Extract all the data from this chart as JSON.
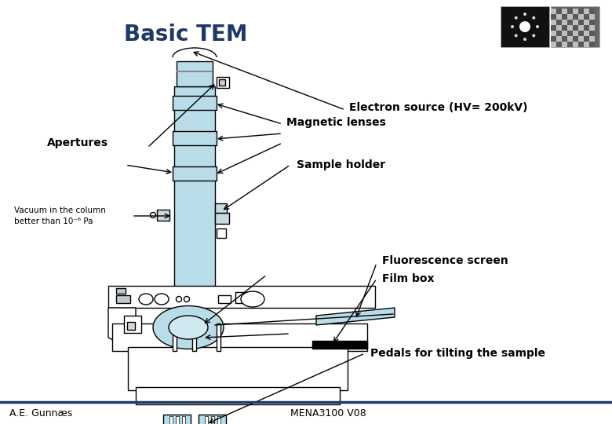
{
  "title": "Basic TEM",
  "title_color": "#1F3864",
  "title_fontsize": 20,
  "bg_color": "#FFFFFF",
  "tem_color": "#B8DDE8",
  "tem_edge_color": "#000000",
  "footer_line_color": "#1F3864",
  "footer_left": "A.E. Gunnæs",
  "footer_right": "MENA3100 V08",
  "footer_fontsize": 9,
  "labels": {
    "electron_source": "Electron source (HV= 200kV)",
    "apertures": "Apertures",
    "magnetic_lenses": "Magnetic lenses",
    "sample_holder": "Sample holder",
    "vacuum": "Vacuum in the column\nbetter than 10⁻⁶ Pa",
    "fluorescence": "Fluorescence screen",
    "film_box": "Film box",
    "pedals": "Pedals for tilting the sample"
  },
  "label_fontsize": 10,
  "small_fontsize": 7.5
}
